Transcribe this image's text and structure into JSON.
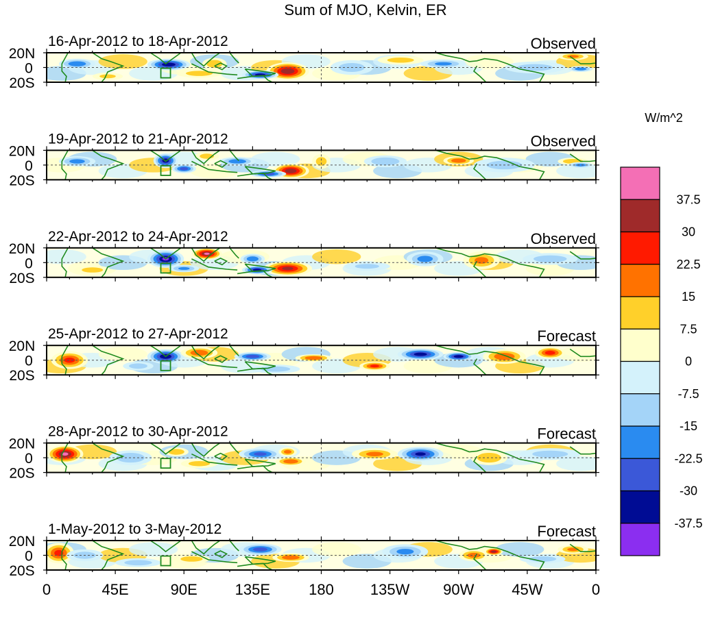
{
  "chart_data": {
    "type": "heatmap",
    "title": "Sum of MJO, Kelvin, ER",
    "units_label": "W/m^2",
    "lat_ticks": [
      "20N",
      "0",
      "20S"
    ],
    "lon_ticks": [
      "0",
      "45E",
      "90E",
      "135E",
      "180",
      "135W",
      "90W",
      "45W",
      "0"
    ],
    "lon_range": [
      0,
      360
    ],
    "lat_range": [
      -20,
      20
    ],
    "colorbar_levels": [
      "37.5",
      "30",
      "22.5",
      "15",
      "7.5",
      "0",
      "-7.5",
      "-15",
      "-22.5",
      "-30",
      "-37.5"
    ],
    "colorbar_colors": [
      "#f46fb5",
      "#9f2a2a",
      "#ff1a00",
      "#ff7200",
      "#ffd02a",
      "#ffffcc",
      "#d4f2fb",
      "#a4d4f8",
      "#2a8bf0",
      "#3b58d8",
      "#000c94",
      "#8b2ef0"
    ],
    "panels": [
      {
        "date": "16-Apr-2012 to 18-Apr-2012",
        "label": "Observed",
        "features": [
          {
            "lon": 80,
            "lat": 4,
            "rx": 14,
            "ry": 8,
            "v": -40
          },
          {
            "lon": 20,
            "lat": 5,
            "rx": 12,
            "ry": 7,
            "v": -25
          },
          {
            "lon": 158,
            "lat": -5,
            "rx": 14,
            "ry": 12,
            "v": 40
          },
          {
            "lon": 140,
            "lat": -10,
            "rx": 12,
            "ry": 6,
            "v": -38
          },
          {
            "lon": 110,
            "lat": 5,
            "rx": 8,
            "ry": 8,
            "v": 18
          },
          {
            "lon": 200,
            "lat": 0,
            "rx": 14,
            "ry": 10,
            "v": -15
          },
          {
            "lon": 232,
            "lat": 10,
            "rx": 15,
            "ry": 6,
            "v": 14
          },
          {
            "lon": 260,
            "lat": 5,
            "rx": 15,
            "ry": 6,
            "v": -20
          },
          {
            "lon": 320,
            "lat": 0,
            "rx": 20,
            "ry": 8,
            "v": -14
          },
          {
            "lon": 345,
            "lat": 15,
            "rx": 10,
            "ry": 5,
            "v": 20
          },
          {
            "lon": 350,
            "lat": -2,
            "rx": 8,
            "ry": 4,
            "v": -25
          },
          {
            "lon": 40,
            "lat": -12,
            "rx": 10,
            "ry": 5,
            "v": 12
          },
          {
            "lon": 100,
            "lat": -8,
            "rx": 15,
            "ry": 6,
            "v": 14
          }
        ]
      },
      {
        "date": "19-Apr-2012 to 21-Apr-2012",
        "label": "Observed",
        "features": [
          {
            "lon": 78,
            "lat": 6,
            "rx": 8,
            "ry": 10,
            "v": -38
          },
          {
            "lon": 90,
            "lat": -5,
            "rx": 8,
            "ry": 6,
            "v": -30
          },
          {
            "lon": 160,
            "lat": -8,
            "rx": 12,
            "ry": 10,
            "v": 40
          },
          {
            "lon": 145,
            "lat": -12,
            "rx": 12,
            "ry": 5,
            "v": -32
          },
          {
            "lon": 125,
            "lat": 5,
            "rx": 12,
            "ry": 6,
            "v": -25
          },
          {
            "lon": 20,
            "lat": 5,
            "rx": 12,
            "ry": 7,
            "v": -22
          },
          {
            "lon": 105,
            "lat": 12,
            "rx": 8,
            "ry": 6,
            "v": 14
          },
          {
            "lon": 222,
            "lat": 5,
            "rx": 14,
            "ry": 8,
            "v": -18
          },
          {
            "lon": 270,
            "lat": 6,
            "rx": 10,
            "ry": 6,
            "v": 25
          },
          {
            "lon": 300,
            "lat": 0,
            "rx": 20,
            "ry": 10,
            "v": -14
          },
          {
            "lon": 345,
            "lat": 5,
            "rx": 10,
            "ry": 5,
            "v": 18
          },
          {
            "lon": 350,
            "lat": 0,
            "rx": 8,
            "ry": 4,
            "v": -22
          },
          {
            "lon": 180,
            "lat": 5,
            "rx": 6,
            "ry": 10,
            "v": 14
          }
        ]
      },
      {
        "date": "22-Apr-2012 to 24-Apr-2012",
        "label": "Observed",
        "features": [
          {
            "lon": 78,
            "lat": 5,
            "rx": 12,
            "ry": 12,
            "v": -42
          },
          {
            "lon": 105,
            "lat": 12,
            "rx": 10,
            "ry": 8,
            "v": 42
          },
          {
            "lon": 158,
            "lat": -8,
            "rx": 16,
            "ry": 10,
            "v": 35
          },
          {
            "lon": 138,
            "lat": -10,
            "rx": 10,
            "ry": 6,
            "v": -38
          },
          {
            "lon": 135,
            "lat": 5,
            "rx": 8,
            "ry": 7,
            "v": -25
          },
          {
            "lon": 90,
            "lat": -8,
            "rx": 10,
            "ry": 5,
            "v": -20
          },
          {
            "lon": 248,
            "lat": 5,
            "rx": 12,
            "ry": 10,
            "v": -22
          },
          {
            "lon": 285,
            "lat": 3,
            "rx": 12,
            "ry": 12,
            "v": 20
          },
          {
            "lon": 330,
            "lat": 5,
            "rx": 18,
            "ry": 8,
            "v": -15
          },
          {
            "lon": 30,
            "lat": -10,
            "rx": 12,
            "ry": 6,
            "v": 14
          },
          {
            "lon": 210,
            "lat": -5,
            "rx": 15,
            "ry": 6,
            "v": -12
          }
        ]
      },
      {
        "date": "25-Apr-2012 to 27-Apr-2012",
        "label": "Forecast",
        "features": [
          {
            "lon": 15,
            "lat": 0,
            "rx": 12,
            "ry": 12,
            "v": 28
          },
          {
            "lon": 78,
            "lat": 5,
            "rx": 12,
            "ry": 10,
            "v": -40
          },
          {
            "lon": 100,
            "lat": 10,
            "rx": 12,
            "ry": 8,
            "v": 25
          },
          {
            "lon": 135,
            "lat": 5,
            "rx": 12,
            "ry": 6,
            "v": -32
          },
          {
            "lon": 175,
            "lat": 3,
            "rx": 12,
            "ry": 5,
            "v": 25
          },
          {
            "lon": 245,
            "lat": 8,
            "rx": 15,
            "ry": 8,
            "v": -38
          },
          {
            "lon": 270,
            "lat": 5,
            "rx": 10,
            "ry": 6,
            "v": -40
          },
          {
            "lon": 215,
            "lat": -8,
            "rx": 10,
            "ry": 6,
            "v": 28
          },
          {
            "lon": 300,
            "lat": 5,
            "rx": 14,
            "ry": 10,
            "v": 25
          },
          {
            "lon": 330,
            "lat": 10,
            "rx": 10,
            "ry": 8,
            "v": 30
          },
          {
            "lon": 150,
            "lat": -12,
            "rx": 16,
            "ry": 6,
            "v": -15
          },
          {
            "lon": 60,
            "lat": -8,
            "rx": 10,
            "ry": 6,
            "v": -15
          }
        ]
      },
      {
        "date": "28-Apr-2012 to 30-Apr-2012",
        "label": "Forecast",
        "features": [
          {
            "lon": 12,
            "lat": 5,
            "rx": 12,
            "ry": 12,
            "v": 42
          },
          {
            "lon": 55,
            "lat": 0,
            "rx": 14,
            "ry": 10,
            "v": -18
          },
          {
            "lon": 85,
            "lat": 8,
            "rx": 8,
            "ry": 6,
            "v": 18
          },
          {
            "lon": 140,
            "lat": 5,
            "rx": 14,
            "ry": 8,
            "v": -28
          },
          {
            "lon": 158,
            "lat": 8,
            "rx": 6,
            "ry": 6,
            "v": 22
          },
          {
            "lon": 160,
            "lat": -5,
            "rx": 10,
            "ry": 6,
            "v": 25
          },
          {
            "lon": 245,
            "lat": 5,
            "rx": 15,
            "ry": 10,
            "v": -35
          },
          {
            "lon": 215,
            "lat": 5,
            "rx": 15,
            "ry": 8,
            "v": 20
          },
          {
            "lon": 290,
            "lat": 0,
            "rx": 12,
            "ry": 10,
            "v": 18
          },
          {
            "lon": 330,
            "lat": 5,
            "rx": 20,
            "ry": 8,
            "v": -14
          },
          {
            "lon": 100,
            "lat": -8,
            "rx": 12,
            "ry": 6,
            "v": 14
          }
        ]
      },
      {
        "date": "1-May-2012 to 3-May-2012",
        "label": "Forecast",
        "features": [
          {
            "lon": 8,
            "lat": 3,
            "rx": 10,
            "ry": 14,
            "v": 28
          },
          {
            "lon": 25,
            "lat": 0,
            "rx": 12,
            "ry": 8,
            "v": -15
          },
          {
            "lon": 140,
            "lat": 8,
            "rx": 14,
            "ry": 8,
            "v": -30
          },
          {
            "lon": 160,
            "lat": -3,
            "rx": 12,
            "ry": 6,
            "v": 25
          },
          {
            "lon": 95,
            "lat": -5,
            "rx": 12,
            "ry": 6,
            "v": 15
          },
          {
            "lon": 235,
            "lat": 5,
            "rx": 15,
            "ry": 10,
            "v": -20
          },
          {
            "lon": 280,
            "lat": 0,
            "rx": 10,
            "ry": 8,
            "v": 22
          },
          {
            "lon": 293,
            "lat": 5,
            "rx": 6,
            "ry": 5,
            "v": 38
          },
          {
            "lon": 325,
            "lat": -5,
            "rx": 15,
            "ry": 6,
            "v": -15
          },
          {
            "lon": 345,
            "lat": 8,
            "rx": 10,
            "ry": 6,
            "v": 20
          },
          {
            "lon": 60,
            "lat": -10,
            "rx": 15,
            "ry": 6,
            "v": -15
          }
        ]
      }
    ]
  }
}
